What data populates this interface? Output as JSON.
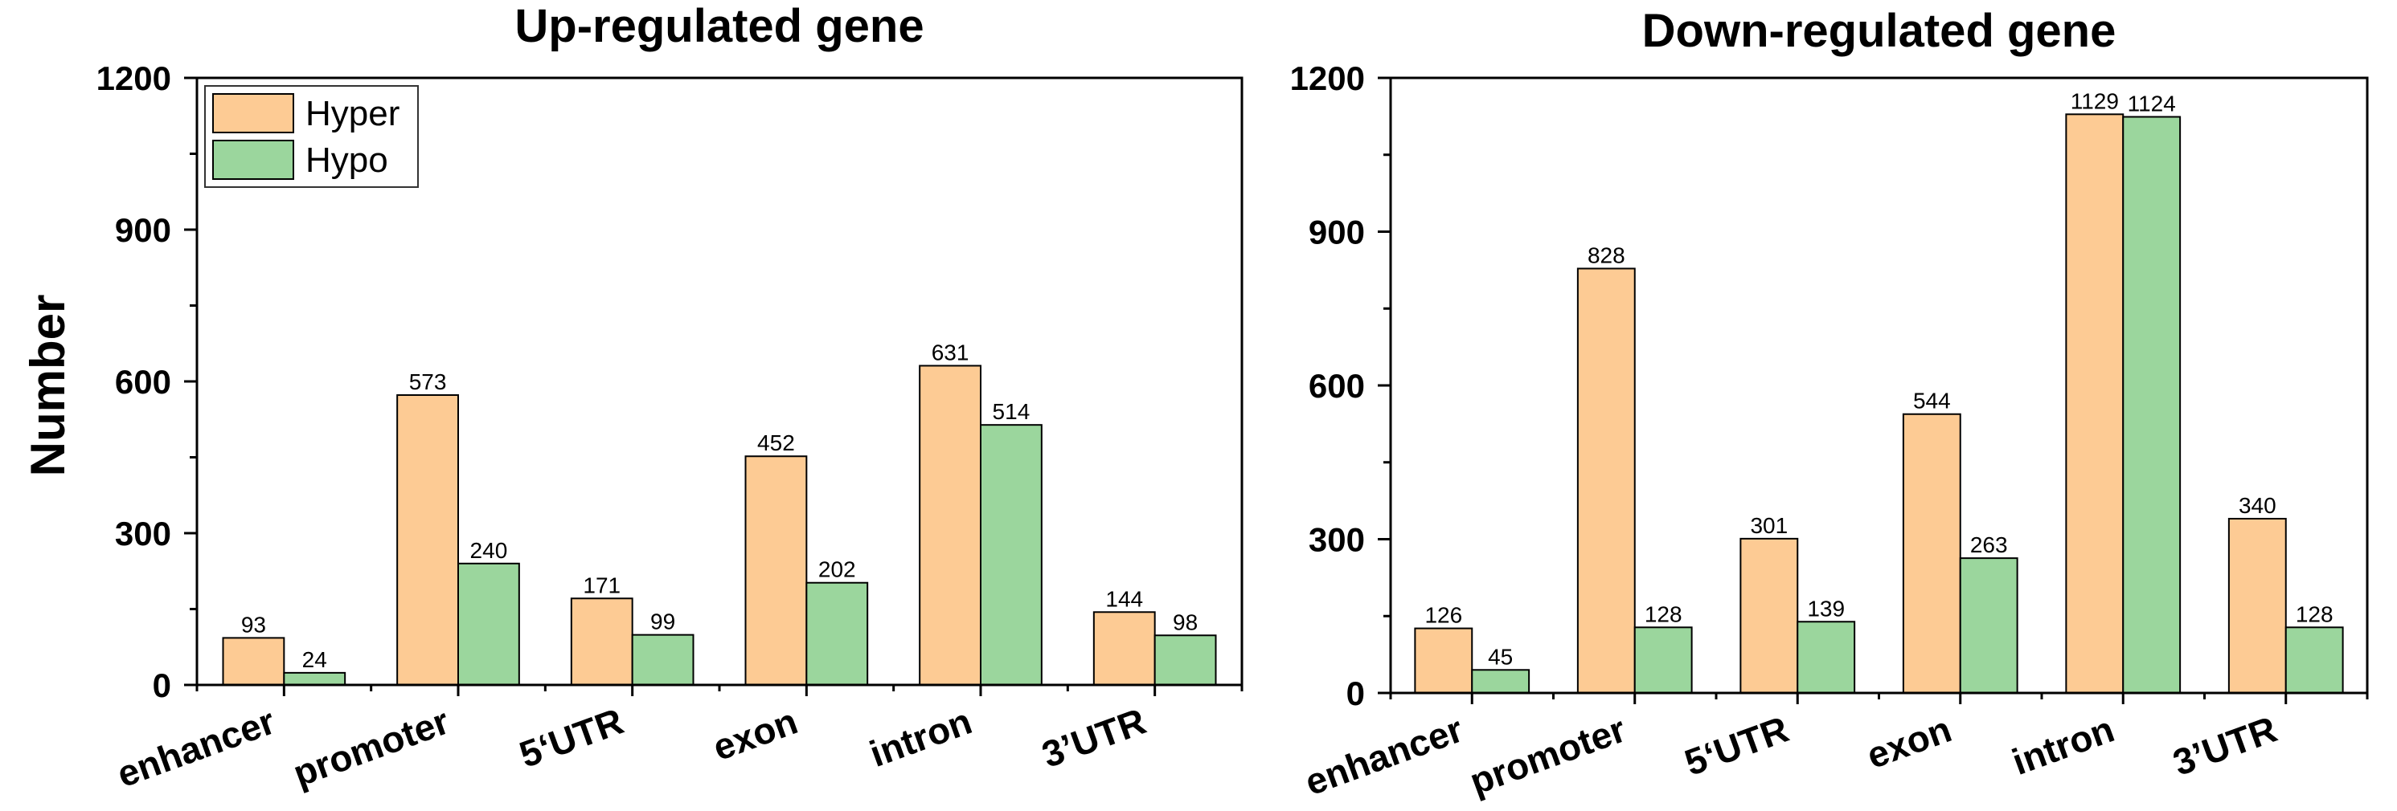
{
  "figure": {
    "ylabel": "Number"
  },
  "chart_data": [
    {
      "type": "bar",
      "title": "Up-regulated gene",
      "xlabel": "",
      "ylabel": "Number",
      "ylim": [
        0,
        1200
      ],
      "yticks": [
        0,
        300,
        600,
        900,
        1200
      ],
      "categories": [
        "enhancer",
        "promoter",
        "5‘UTR",
        "exon",
        "intron",
        "3’UTR"
      ],
      "series": [
        {
          "name": "Hyper",
          "color": "#FDCB94",
          "values": [
            93,
            573,
            171,
            452,
            631,
            144
          ]
        },
        {
          "name": "Hypo",
          "color": "#9BD69D",
          "values": [
            24,
            240,
            99,
            202,
            514,
            98
          ]
        }
      ],
      "legend": "top-left",
      "grid": false
    },
    {
      "type": "bar",
      "title": "Down-regulated gene",
      "xlabel": "",
      "ylabel": "",
      "ylim": [
        0,
        1200
      ],
      "yticks": [
        0,
        300,
        600,
        900,
        1200
      ],
      "categories": [
        "enhancer",
        "promoter",
        "5‘UTR",
        "exon",
        "intron",
        "3’UTR"
      ],
      "series": [
        {
          "name": "Hyper",
          "color": "#FDCB94",
          "values": [
            126,
            828,
            301,
            544,
            1129,
            340
          ]
        },
        {
          "name": "Hypo",
          "color": "#9BD69D",
          "values": [
            45,
            128,
            139,
            263,
            1124,
            128
          ]
        }
      ],
      "legend": "none",
      "grid": false
    }
  ]
}
